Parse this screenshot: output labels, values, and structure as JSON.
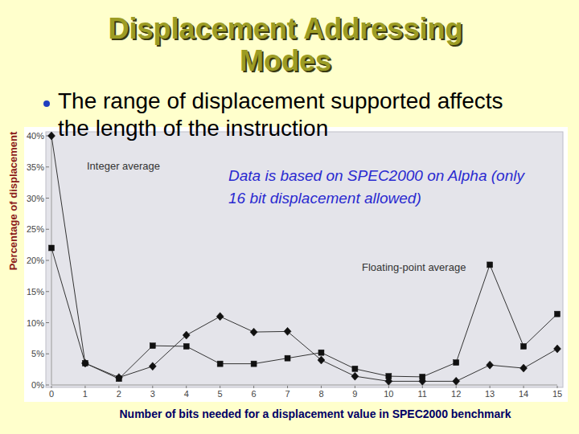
{
  "chart_data": {
    "type": "line",
    "title": "Displacement Addressing Modes",
    "subtitle": "The range of displacement supported affects the length of the instruction",
    "annotation": "Data is based on SPEC2000 on Alpha (only 16 bit displacement allowed)",
    "x_label": "Number of bits needed for a displacement value in SPEC2000 benchmark",
    "y_label": "Percentage of displacement",
    "x": [
      0,
      1,
      2,
      3,
      4,
      5,
      6,
      7,
      8,
      9,
      10,
      11,
      12,
      13,
      14,
      15
    ],
    "series": [
      {
        "name": "Integer average",
        "color": "#333333",
        "marker": "diamond",
        "values": [
          40,
          3.5,
          1.2,
          3,
          8,
          11,
          8.5,
          8.6,
          4,
          1.4,
          0.6,
          0.6,
          0.6,
          3.2,
          2.7,
          5.8
        ]
      },
      {
        "name": "Floating-point average",
        "color": "#333333",
        "marker": "square",
        "values": [
          22,
          3.5,
          1,
          6.3,
          6.2,
          3.4,
          3.4,
          4.3,
          5.2,
          2.6,
          1.4,
          1.3,
          3.6,
          19.3,
          6.2,
          11.4
        ]
      }
    ],
    "xlim": [
      0,
      15
    ],
    "xticks": [
      0,
      1,
      2,
      3,
      4,
      5,
      6,
      7,
      8,
      9,
      10,
      11,
      12,
      13,
      14,
      15
    ],
    "ylim": [
      0,
      40
    ],
    "yticks": [
      {
        "value": 0,
        "label": "0%"
      },
      {
        "value": 5,
        "label": "5%"
      },
      {
        "value": 10,
        "label": "10%"
      },
      {
        "value": 15,
        "label": "15%"
      },
      {
        "value": 20,
        "label": "20%"
      },
      {
        "value": 25,
        "label": "25%"
      },
      {
        "value": 30,
        "label": "30%"
      },
      {
        "value": 35,
        "label": "35%"
      },
      {
        "value": 40,
        "label": "40%"
      }
    ],
    "grid": false
  }
}
